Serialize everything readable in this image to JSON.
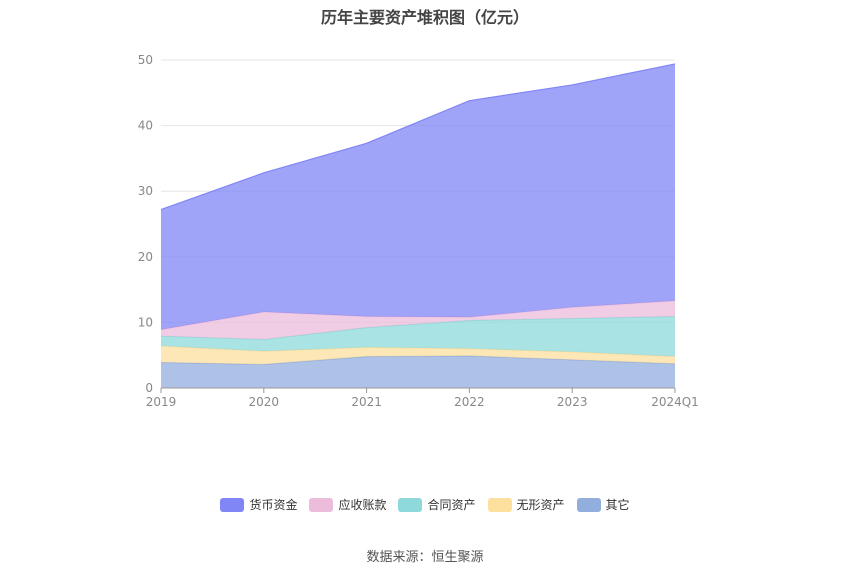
{
  "chart_data": {
    "type": "area",
    "stacked": true,
    "title": "历年主要资产堆积图（亿元）",
    "categories": [
      "2019",
      "2020",
      "2021",
      "2022",
      "2023",
      "2024Q1"
    ],
    "ylim": [
      0,
      50
    ],
    "yticks": [
      0,
      10,
      20,
      30,
      40,
      50
    ],
    "grid": true,
    "legend_position": "bottom",
    "series": [
      {
        "name": "其它",
        "color": "#92aedd",
        "values": [
          3.9,
          3.6,
          4.8,
          4.9,
          4.3,
          3.7
        ]
      },
      {
        "name": "无形资产",
        "color": "#fddf9e",
        "values": [
          2.5,
          2.0,
          1.4,
          1.1,
          1.2,
          1.1
        ]
      },
      {
        "name": "合同资产",
        "color": "#8ed9d9",
        "values": [
          1.5,
          1.8,
          3.0,
          4.3,
          5.1,
          6.1
        ]
      },
      {
        "name": "应收账款",
        "color": "#ebbcdb",
        "values": [
          1.0,
          4.2,
          1.7,
          0.5,
          1.7,
          2.4
        ]
      },
      {
        "name": "货币资金",
        "color": "#8086f5",
        "values": [
          18.3,
          21.2,
          26.4,
          33.0,
          33.9,
          36.1
        ]
      }
    ]
  },
  "legend_order": [
    "货币资金",
    "应收账款",
    "合同资产",
    "无形资产",
    "其它"
  ],
  "source_text": "数据来源：恒生聚源"
}
